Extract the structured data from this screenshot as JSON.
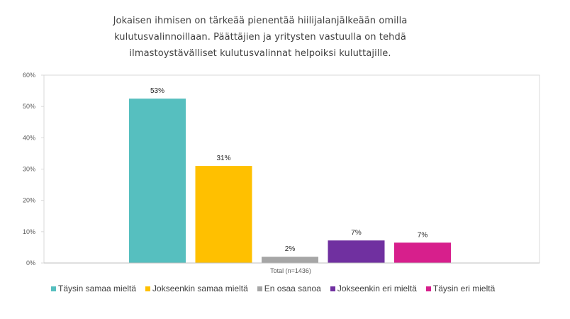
{
  "chart_data": {
    "type": "bar",
    "title_lines": [
      "Jokaisen ihmisen on tärkeää pienentää hiilijalanjälkeään omilla",
      "kulutusvalinnoillaan. Päättäjien ja yritysten vastuulla on tehdä",
      "ilmastoystävälliset kulutusvalinnat helpoiksi kuluttajille."
    ],
    "categories": [
      "Total (n=1436)"
    ],
    "series": [
      {
        "name": "Täysin samaa mieltä",
        "values": [
          0.525
        ],
        "label": "53%",
        "color": "#56bfbf"
      },
      {
        "name": "Jokseenkin samaa mieltä",
        "values": [
          0.31
        ],
        "label": "31%",
        "color": "#ffc000"
      },
      {
        "name": "En osaa sanoa",
        "values": [
          0.02
        ],
        "label": "2%",
        "color": "#a6a6a6"
      },
      {
        "name": "Jokseenkin eri mieltä",
        "values": [
          0.072
        ],
        "label": "7%",
        "color": "#7030a0"
      },
      {
        "name": "Täysin eri mieltä",
        "values": [
          0.065
        ],
        "label": "7%",
        "color": "#d71f8c"
      }
    ],
    "y_ticks": [
      "0%",
      "10%",
      "20%",
      "30%",
      "40%",
      "50%",
      "60%"
    ],
    "ylim": [
      0,
      0.6
    ],
    "xlabel": "",
    "ylabel": "",
    "grid": false,
    "legend_position": "bottom"
  }
}
